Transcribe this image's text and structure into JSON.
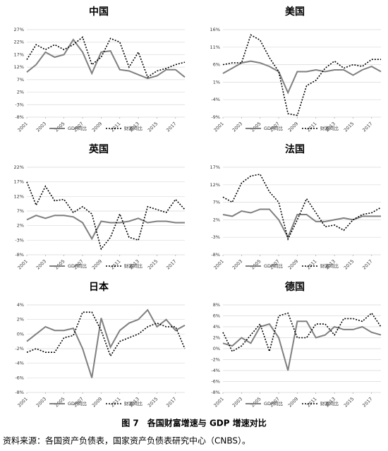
{
  "chart_data": [
    {
      "type": "line",
      "title": "中国",
      "x": [
        2001,
        2002,
        2003,
        2004,
        2005,
        2006,
        2007,
        2008,
        2009,
        2010,
        2011,
        2012,
        2013,
        2014,
        2015,
        2016,
        2017,
        2018
      ],
      "xlim": [
        2001,
        2018
      ],
      "xticks": [
        2001,
        2003,
        2005,
        2007,
        2009,
        2011,
        2013,
        2015,
        2017
      ],
      "ylim": [
        -8,
        27
      ],
      "yticks": [
        {
          "value": -8,
          "label": "-8%"
        },
        {
          "value": -3,
          "label": "-3%"
        },
        {
          "value": 2,
          "label": "2%"
        },
        {
          "value": 7,
          "label": "7%"
        },
        {
          "value": 12,
          "label": "12%"
        },
        {
          "value": 17,
          "label": "17%"
        },
        {
          "value": 22,
          "label": "22%"
        },
        {
          "value": 27,
          "label": "27%"
        }
      ],
      "grid": true,
      "series": [
        {
          "name": "GDP同比",
          "color": "#7f7f7f",
          "style": "solid",
          "values": [
            10,
            13,
            18,
            16,
            17,
            23,
            18,
            9.5,
            18,
            18.5,
            11,
            10.5,
            9,
            7.5,
            8.5,
            11,
            11,
            8
          ]
        },
        {
          "name": "财富同比",
          "color": "#000000",
          "style": "dotted",
          "values": [
            15,
            21,
            19,
            21,
            19,
            21,
            24,
            13,
            16,
            23.5,
            22,
            12,
            18,
            8,
            10.5,
            11.5,
            13,
            14
          ]
        }
      ]
    },
    {
      "type": "line",
      "title": "美国",
      "x": [
        2001,
        2002,
        2003,
        2004,
        2005,
        2006,
        2007,
        2008,
        2009,
        2010,
        2011,
        2012,
        2013,
        2014,
        2015,
        2016,
        2017,
        2018
      ],
      "xlim": [
        2001,
        2018
      ],
      "xticks": [
        2001,
        2003,
        2005,
        2007,
        2009,
        2011,
        2013,
        2015,
        2017
      ],
      "ylim": [
        -9,
        16
      ],
      "yticks": [
        {
          "value": -9,
          "label": "-9%"
        },
        {
          "value": -4,
          "label": "-4%"
        },
        {
          "value": 1,
          "label": "1%"
        },
        {
          "value": 6,
          "label": "6%"
        },
        {
          "value": 11,
          "label": "11%"
        },
        {
          "value": 16,
          "label": "16%"
        }
      ],
      "grid": true,
      "series": [
        {
          "name": "GDP同比",
          "color": "#7f7f7f",
          "style": "solid",
          "values": [
            3.5,
            5,
            6.5,
            7,
            6.5,
            5.5,
            4,
            -2,
            4,
            4,
            4.5,
            4,
            4.5,
            4.5,
            3,
            4.5,
            5.5,
            4
          ]
        },
        {
          "name": "财富同比",
          "color": "#000000",
          "style": "dotted",
          "values": [
            6,
            6.5,
            6.5,
            14.5,
            13,
            8,
            4,
            -8,
            -8.5,
            0,
            1.5,
            5,
            7,
            5,
            6,
            5.5,
            7.5,
            7.5
          ]
        }
      ]
    },
    {
      "type": "line",
      "title": "英国",
      "x": [
        2001,
        2002,
        2003,
        2004,
        2005,
        2006,
        2007,
        2008,
        2009,
        2010,
        2011,
        2012,
        2013,
        2014,
        2015,
        2016,
        2017,
        2018
      ],
      "xlim": [
        2001,
        2018
      ],
      "xticks": [
        2001,
        2003,
        2005,
        2007,
        2009,
        2011,
        2013,
        2015,
        2017
      ],
      "ylim": [
        -8,
        22
      ],
      "yticks": [
        {
          "value": -8,
          "label": "-8%"
        },
        {
          "value": -3,
          "label": "-3%"
        },
        {
          "value": 2,
          "label": "2%"
        },
        {
          "value": 7,
          "label": "7%"
        },
        {
          "value": 12,
          "label": "12%"
        },
        {
          "value": 17,
          "label": "17%"
        },
        {
          "value": 22,
          "label": "22%"
        }
      ],
      "grid": true,
      "series": [
        {
          "name": "GDP同比",
          "color": "#7f7f7f",
          "style": "solid",
          "values": [
            4,
            5.5,
            4.5,
            5.5,
            5.5,
            5,
            3,
            -2.5,
            3.5,
            3,
            3,
            3.5,
            4.5,
            3,
            3.5,
            3.5,
            3,
            3
          ]
        },
        {
          "name": "财富同比",
          "color": "#000000",
          "style": "dotted",
          "values": [
            17,
            9,
            15.5,
            10.5,
            11,
            6.5,
            8.5,
            6,
            -6,
            -2,
            6,
            -2,
            -3,
            8.5,
            7.5,
            6.5,
            11,
            7.5
          ]
        }
      ]
    },
    {
      "type": "line",
      "title": "法国",
      "x": [
        2001,
        2002,
        2003,
        2004,
        2005,
        2006,
        2007,
        2008,
        2009,
        2010,
        2011,
        2012,
        2013,
        2014,
        2015,
        2016,
        2017,
        2018
      ],
      "xlim": [
        2001,
        2018
      ],
      "xticks": [
        2001,
        2003,
        2005,
        2007,
        2009,
        2011,
        2013,
        2015,
        2017
      ],
      "ylim": [
        -8,
        17
      ],
      "yticks": [
        {
          "value": -8,
          "label": "-8%"
        },
        {
          "value": -3,
          "label": "-3%"
        },
        {
          "value": 2,
          "label": "2%"
        },
        {
          "value": 7,
          "label": "7%"
        },
        {
          "value": 12,
          "label": "12%"
        },
        {
          "value": 17,
          "label": "17%"
        }
      ],
      "grid": true,
      "series": [
        {
          "name": "GDP同比",
          "color": "#7f7f7f",
          "style": "solid",
          "values": [
            3.5,
            3,
            4.5,
            4,
            5,
            5,
            2,
            -3,
            3.5,
            3.5,
            1.5,
            1.5,
            2,
            2.5,
            2,
            3,
            3,
            3
          ]
        },
        {
          "name": "财富同比",
          "color": "#000000",
          "style": "dotted",
          "values": [
            8.5,
            7,
            12.5,
            14.5,
            15,
            10,
            7,
            -3.5,
            2,
            8,
            4,
            0,
            0.5,
            -1,
            2,
            3.5,
            4,
            5.5
          ]
        }
      ]
    },
    {
      "type": "line",
      "title": "日本",
      "x": [
        2001,
        2002,
        2003,
        2004,
        2005,
        2006,
        2007,
        2008,
        2009,
        2010,
        2011,
        2012,
        2013,
        2014,
        2015,
        2016,
        2017,
        2018
      ],
      "xlim": [
        2001,
        2018
      ],
      "xticks": [
        2001,
        2003,
        2005,
        2007,
        2009,
        2011,
        2013,
        2015,
        2017
      ],
      "ylim": [
        -8,
        4
      ],
      "yticks": [
        {
          "value": -8,
          "label": "-8%"
        },
        {
          "value": -6,
          "label": "-6%"
        },
        {
          "value": -4,
          "label": "-4%"
        },
        {
          "value": -2,
          "label": "-2%"
        },
        {
          "value": 0,
          "label": "0%"
        },
        {
          "value": 2,
          "label": "2%"
        },
        {
          "value": 4,
          "label": "4%"
        }
      ],
      "grid": true,
      "series": [
        {
          "name": "GDP同比",
          "color": "#7f7f7f",
          "style": "solid",
          "values": [
            -1,
            0,
            1,
            0.5,
            0.5,
            0.8,
            -2,
            -6,
            2.2,
            -1.8,
            0.5,
            1.5,
            2,
            3.3,
            1,
            2,
            0.5,
            1.2
          ]
        },
        {
          "name": "财富同比",
          "color": "#000000",
          "style": "dotted",
          "values": [
            -2.5,
            -2,
            -2.5,
            -2.5,
            -0.5,
            -0.2,
            3,
            3,
            0.5,
            -3,
            -1,
            -0.5,
            0,
            1,
            1.5,
            1,
            1,
            -2
          ]
        }
      ]
    },
    {
      "type": "line",
      "title": "德国",
      "x": [
        2001,
        2002,
        2003,
        2004,
        2005,
        2006,
        2007,
        2008,
        2009,
        2010,
        2011,
        2012,
        2013,
        2014,
        2015,
        2016,
        2017,
        2018
      ],
      "xlim": [
        2001,
        2018
      ],
      "xticks": [
        2001,
        2003,
        2005,
        2007,
        2009,
        2011,
        2013,
        2015,
        2017
      ],
      "ylim": [
        -8,
        8
      ],
      "yticks": [
        {
          "value": -8,
          "label": "-8%"
        },
        {
          "value": -6,
          "label": "-6%"
        },
        {
          "value": -4,
          "label": "-4%"
        },
        {
          "value": -2,
          "label": "-2%"
        },
        {
          "value": 0,
          "label": "0%"
        },
        {
          "value": 2,
          "label": "2%"
        },
        {
          "value": 4,
          "label": "4%"
        },
        {
          "value": 6,
          "label": "6%"
        },
        {
          "value": 8,
          "label": "8%"
        }
      ],
      "grid": true,
      "series": [
        {
          "name": "GDP同比",
          "color": "#7f7f7f",
          "style": "solid",
          "values": [
            1,
            0.5,
            2,
            1,
            4,
            4.5,
            2,
            -4,
            5,
            5,
            2,
            2.5,
            4,
            3.5,
            3.5,
            4,
            3,
            2.5
          ]
        },
        {
          "name": "财富同比",
          "color": "#000000",
          "style": "dotted",
          "values": [
            3,
            -0.5,
            0.5,
            2.5,
            4.5,
            -0.5,
            6,
            6.5,
            2,
            2,
            4.5,
            4.5,
            2.5,
            5.5,
            5.5,
            5,
            6.5,
            4
          ]
        }
      ]
    }
  ],
  "caption": "图 7　各国财富增速与 GDP 增速对比",
  "source": "资料来源：各国资产负债表，国家资产负债表研究中心（CNBS）。"
}
